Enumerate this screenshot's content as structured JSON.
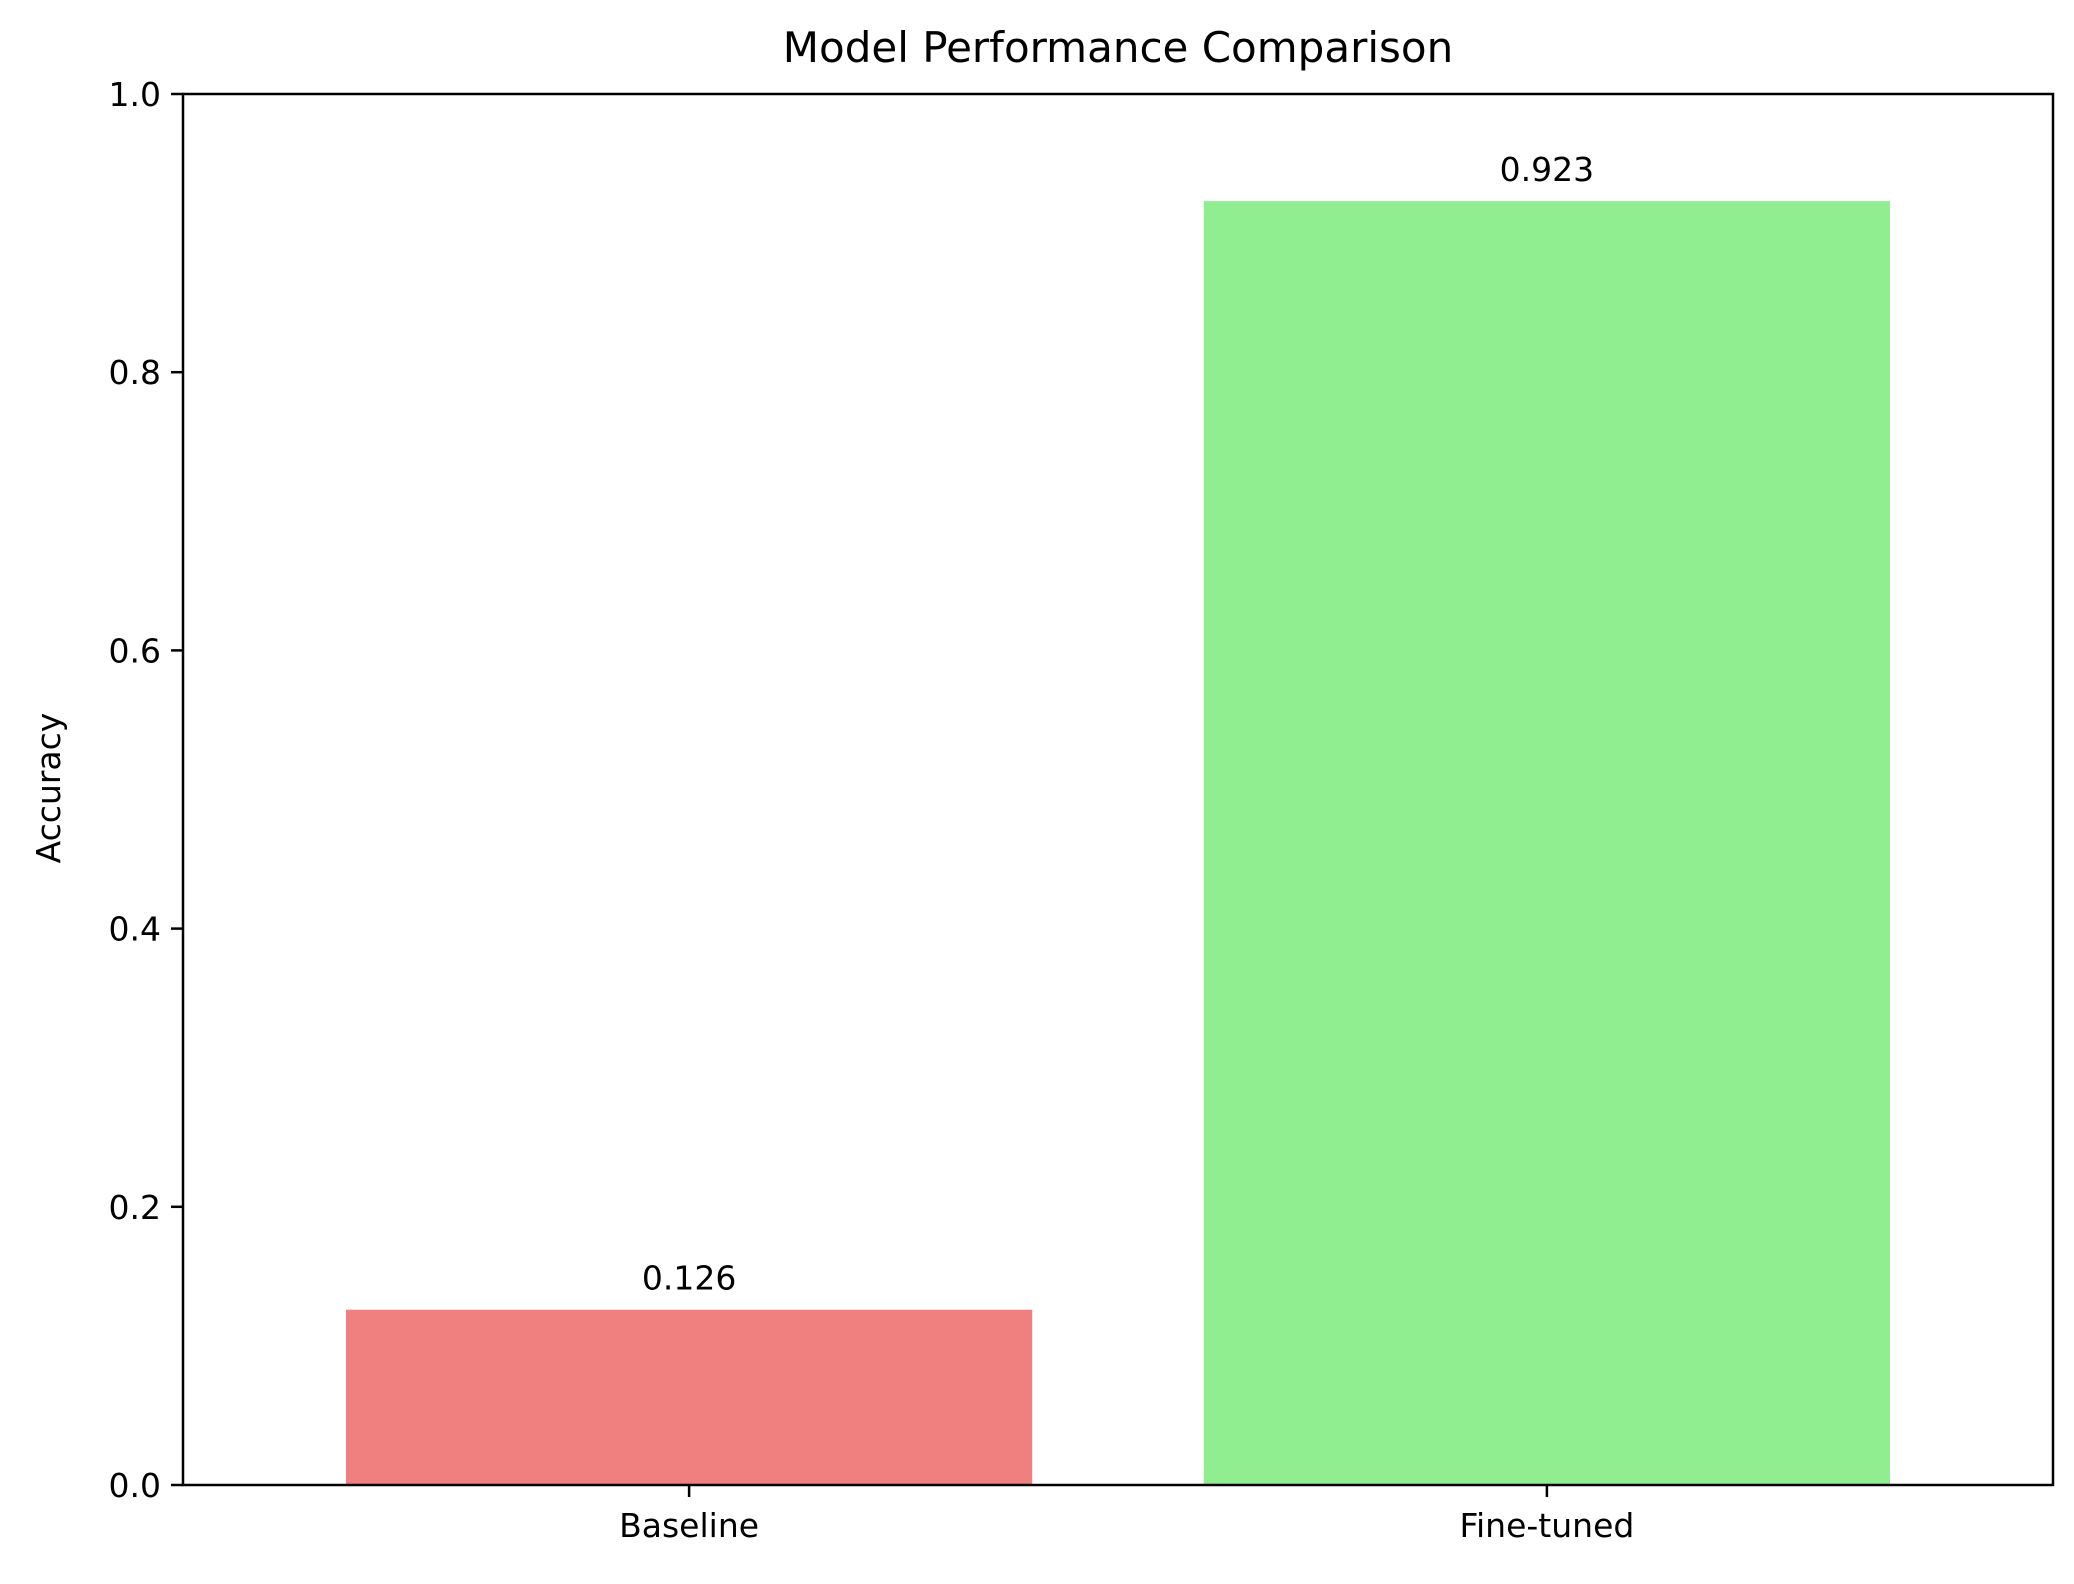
{
  "chart_data": {
    "type": "bar",
    "title": "Model Performance Comparison",
    "xlabel": "",
    "ylabel": "Accuracy",
    "categories": [
      "Baseline",
      "Fine-tuned"
    ],
    "values": [
      0.126,
      0.923
    ],
    "value_labels": [
      "0.126",
      "0.923"
    ],
    "colors": [
      "#F08080",
      "#90EE90"
    ],
    "ylim": [
      0,
      1.0
    ],
    "yticks": [
      0.0,
      0.2,
      0.4,
      0.6,
      0.8,
      1.0
    ],
    "ytick_labels": [
      "0.0",
      "0.2",
      "0.4",
      "0.6",
      "0.8",
      "1.0"
    ],
    "grid": false,
    "legend": false
  }
}
